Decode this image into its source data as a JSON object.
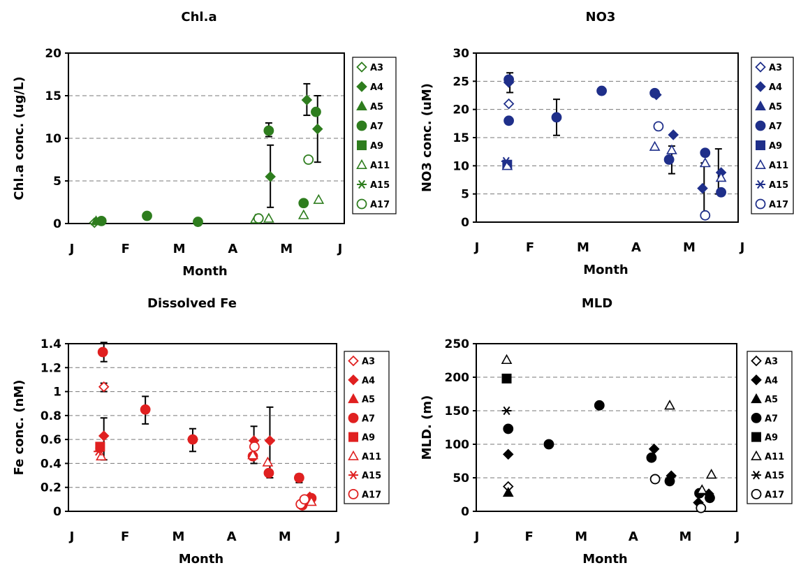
{
  "chart_data": [
    {
      "type": "scatter",
      "title": "Chl.a",
      "xlabel": "Month",
      "ylabel": "Chl.a conc. (ug/L)",
      "ylim": [
        0,
        20
      ],
      "yticks": [
        0,
        5,
        10,
        15,
        20
      ],
      "xticks": [
        "J",
        "F",
        "M",
        "A",
        "M",
        "J"
      ],
      "grid": "horizontal dashed",
      "legend_position": "right",
      "color": "#2e7d1e",
      "series": [
        {
          "name": "A3",
          "marker": "diamond-open",
          "points": [
            [
              0.42,
              0.1
            ]
          ]
        },
        {
          "name": "A4",
          "marker": "diamond",
          "points": [
            [
              4.38,
              14.5
            ],
            [
              4.58,
              11.1
            ],
            [
              3.7,
              5.5
            ]
          ]
        },
        {
          "name": "A5",
          "marker": "triangle",
          "points": [
            [
              0.45,
              0.3
            ]
          ]
        },
        {
          "name": "A7",
          "marker": "circle",
          "points": [
            [
              0.55,
              0.3
            ],
            [
              1.4,
              0.9
            ],
            [
              2.35,
              0.2
            ],
            [
              3.67,
              10.9
            ],
            [
              4.32,
              2.4
            ],
            [
              4.55,
              13.1
            ]
          ]
        },
        {
          "name": "A9",
          "marker": "square",
          "points": []
        },
        {
          "name": "A11",
          "marker": "triangle-open",
          "points": [
            [
              3.42,
              0.5
            ],
            [
              3.67,
              0.6
            ],
            [
              4.32,
              1.0
            ],
            [
              4.6,
              2.8
            ]
          ]
        },
        {
          "name": "A15",
          "marker": "asterisk",
          "points": [
            [
              0.5,
              0.3
            ]
          ]
        },
        {
          "name": "A17",
          "marker": "circle-open",
          "points": [
            [
              3.48,
              0.6
            ],
            [
              4.41,
              7.5
            ]
          ]
        }
      ],
      "error_bars": [
        [
          3.7,
          1.9,
          9.2
        ],
        [
          3.67,
          10.2,
          11.8
        ],
        [
          4.38,
          12.7,
          16.4
        ],
        [
          4.58,
          7.2,
          15.0
        ]
      ]
    },
    {
      "type": "scatter",
      "title": "NO3",
      "xlabel": "Month",
      "ylabel": "NO3 conc. (uM)",
      "ylim": [
        0,
        30
      ],
      "yticks": [
        0,
        5,
        10,
        15,
        20,
        25,
        30
      ],
      "xticks": [
        "J",
        "F",
        "M",
        "A",
        "M",
        "J"
      ],
      "grid": "horizontal dashed",
      "legend_position": "right",
      "color": "#1f2f8a",
      "series": [
        {
          "name": "A3",
          "marker": "diamond-open",
          "points": [
            [
              0.6,
              21.0
            ]
          ]
        },
        {
          "name": "A4",
          "marker": "diamond",
          "points": [
            [
              0.6,
              24.8
            ],
            [
              3.38,
              22.6
            ],
            [
              3.7,
              15.5
            ],
            [
              4.25,
              6.0
            ],
            [
              4.6,
              8.8
            ]
          ]
        },
        {
          "name": "A5",
          "marker": "triangle",
          "points": []
        },
        {
          "name": "A7",
          "marker": "circle",
          "points": [
            [
              0.6,
              18.0
            ],
            [
              0.6,
              25.3
            ],
            [
              1.5,
              18.6
            ],
            [
              2.35,
              23.3
            ],
            [
              3.35,
              22.9
            ],
            [
              3.62,
              11.1
            ],
            [
              4.3,
              12.3
            ],
            [
              4.6,
              5.3
            ]
          ]
        },
        {
          "name": "A9",
          "marker": "square",
          "points": [
            [
              0.57,
              10.2
            ]
          ]
        },
        {
          "name": "A11",
          "marker": "triangle-open",
          "points": [
            [
              0.57,
              10.0
            ],
            [
              3.35,
              13.4
            ],
            [
              3.67,
              12.8
            ],
            [
              4.3,
              10.5
            ],
            [
              4.6,
              7.9
            ]
          ]
        },
        {
          "name": "A15",
          "marker": "asterisk",
          "points": [
            [
              0.55,
              10.8
            ]
          ]
        },
        {
          "name": "A17",
          "marker": "circle-open",
          "points": [
            [
              3.42,
              17.0
            ],
            [
              4.3,
              1.2
            ]
          ]
        }
      ],
      "error_bars": [
        [
          0.62,
          23.0,
          26.5
        ],
        [
          1.5,
          15.4,
          21.8
        ],
        [
          3.67,
          8.6,
          13.5
        ],
        [
          4.28,
          1.5,
          10.5
        ],
        [
          4.55,
          5.0,
          13.0
        ]
      ]
    },
    {
      "type": "scatter",
      "title": "Dissolved Fe",
      "xlabel": "Month",
      "ylabel": "Fe conc. (nM)",
      "ylim": [
        0,
        1.4
      ],
      "yticks": [
        0,
        0.2,
        0.4,
        0.6,
        0.8,
        1,
        1.2,
        1.4
      ],
      "xticks": [
        "J",
        "F",
        "M",
        "A",
        "M",
        "J"
      ],
      "grid": "horizontal dashed",
      "legend_position": "right",
      "color": "#e02020",
      "series": [
        {
          "name": "A3",
          "marker": "diamond-open",
          "points": [
            [
              0.6,
              1.04
            ]
          ]
        },
        {
          "name": "A4",
          "marker": "diamond",
          "points": [
            [
              0.6,
              0.63
            ],
            [
              3.42,
              0.59
            ],
            [
              3.72,
              0.59
            ],
            [
              4.47,
              0.12
            ]
          ]
        },
        {
          "name": "A5",
          "marker": "triangle",
          "points": []
        },
        {
          "name": "A7",
          "marker": "circle",
          "points": [
            [
              0.58,
              1.33
            ],
            [
              1.38,
              0.85
            ],
            [
              2.27,
              0.6
            ],
            [
              3.4,
              0.46
            ],
            [
              3.7,
              0.32
            ],
            [
              4.27,
              0.28
            ],
            [
              4.33,
              0.05
            ],
            [
              4.5,
              0.11
            ]
          ]
        },
        {
          "name": "A9",
          "marker": "square",
          "points": [
            [
              0.53,
              0.54
            ]
          ]
        },
        {
          "name": "A11",
          "marker": "triangle-open",
          "points": [
            [
              0.55,
              0.46
            ],
            [
              3.4,
              0.47
            ],
            [
              3.68,
              0.41
            ],
            [
              4.5,
              0.08
            ]
          ]
        },
        {
          "name": "A15",
          "marker": "asterisk",
          "points": [
            [
              0.5,
              0.5
            ]
          ]
        },
        {
          "name": "A17",
          "marker": "circle-open",
          "points": [
            [
              3.43,
              0.54
            ],
            [
              4.3,
              0.06
            ],
            [
              4.37,
              0.1
            ]
          ]
        }
      ],
      "error_bars": [
        [
          0.6,
          1.25,
          1.41
        ],
        [
          0.6,
          1.0,
          1.07
        ],
        [
          0.6,
          0.43,
          0.78
        ],
        [
          1.38,
          0.73,
          0.96
        ],
        [
          2.27,
          0.5,
          0.69
        ],
        [
          3.42,
          0.4,
          0.71
        ],
        [
          3.72,
          0.28,
          0.87
        ],
        [
          4.27,
          0.24,
          0.31
        ]
      ]
    },
    {
      "type": "scatter",
      "title": "MLD",
      "xlabel": "Month",
      "ylabel": "MLD. (m)",
      "ylim": [
        0,
        250
      ],
      "yticks": [
        0,
        50,
        100,
        150,
        200,
        250
      ],
      "xticks": [
        "J",
        "F",
        "M",
        "A",
        "M",
        "J"
      ],
      "grid": "horizontal dashed",
      "legend_position": "right",
      "color": "#000000",
      "series": [
        {
          "name": "A3",
          "marker": "diamond-open",
          "points": [
            [
              0.6,
              37
            ]
          ]
        },
        {
          "name": "A4",
          "marker": "diamond",
          "points": [
            [
              0.6,
              85
            ],
            [
              3.4,
              93
            ],
            [
              3.73,
              53
            ],
            [
              4.25,
              13
            ],
            [
              4.45,
              26
            ]
          ]
        },
        {
          "name": "A5",
          "marker": "triangle",
          "points": [
            [
              0.6,
              28
            ]
          ]
        },
        {
          "name": "A7",
          "marker": "circle",
          "points": [
            [
              0.6,
              123
            ],
            [
              1.38,
              100
            ],
            [
              2.35,
              158
            ],
            [
              3.35,
              80
            ],
            [
              3.7,
              45
            ],
            [
              4.27,
              27
            ],
            [
              4.47,
              20
            ]
          ]
        },
        {
          "name": "A9",
          "marker": "square",
          "points": [
            [
              0.57,
              198
            ]
          ]
        },
        {
          "name": "A11",
          "marker": "triangle-open",
          "points": [
            [
              0.57,
              226
            ],
            [
              3.7,
              158
            ],
            [
              4.32,
              32
            ],
            [
              4.5,
              55
            ]
          ]
        },
        {
          "name": "A15",
          "marker": "asterisk",
          "points": [
            [
              0.57,
              150
            ]
          ]
        },
        {
          "name": "A17",
          "marker": "circle-open",
          "points": [
            [
              3.42,
              48
            ],
            [
              4.3,
              5
            ]
          ]
        }
      ],
      "error_bars": []
    }
  ]
}
